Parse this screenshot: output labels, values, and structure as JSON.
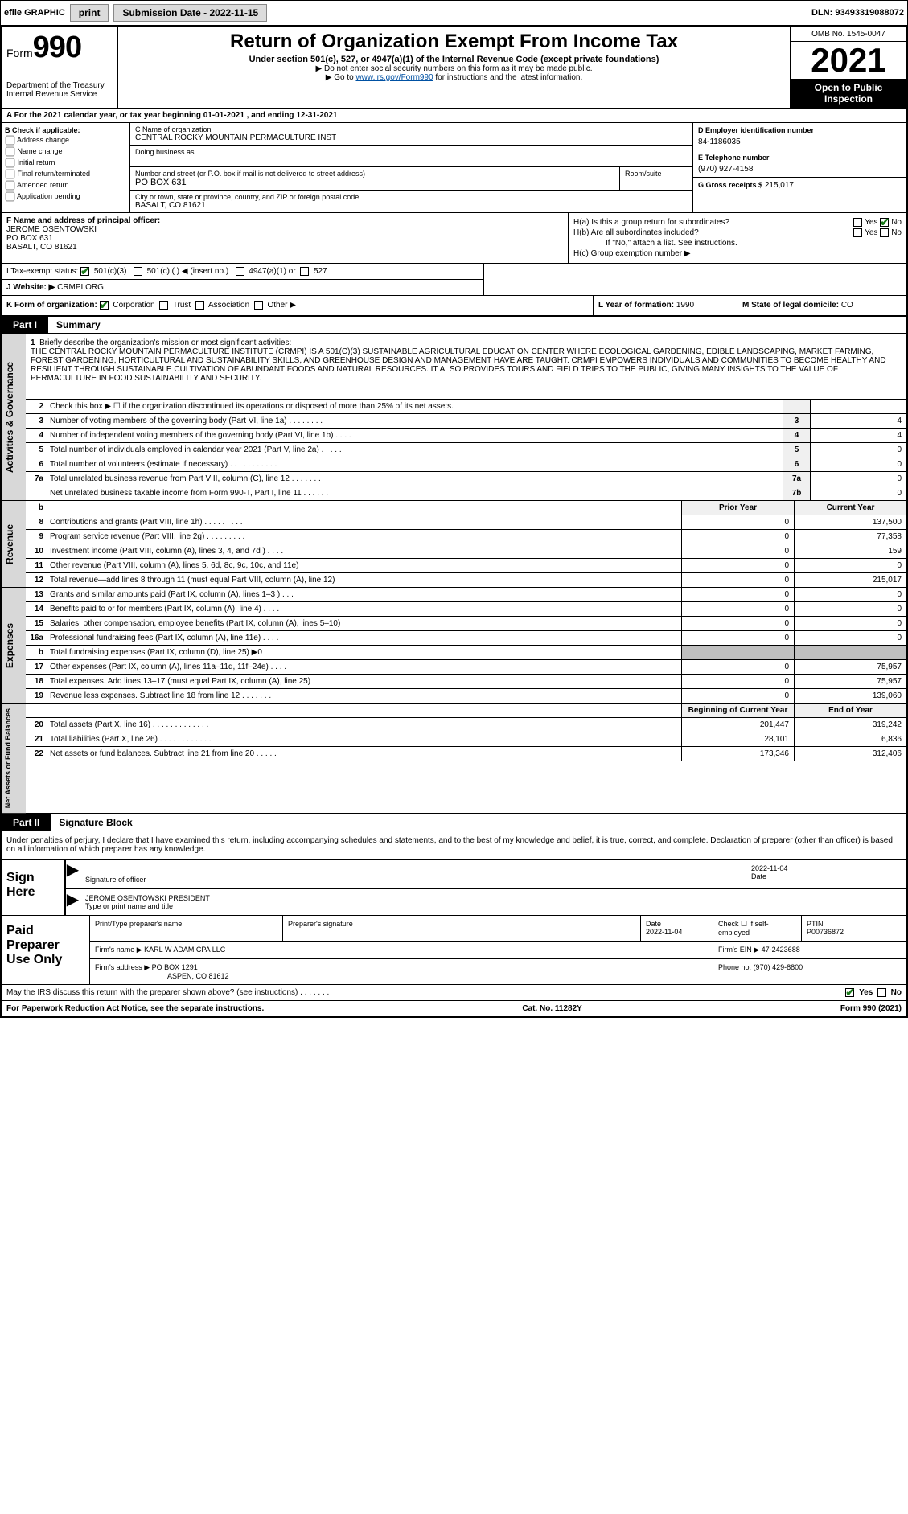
{
  "topbar": {
    "efile_label": "efile GRAPHIC",
    "print_btn": "print",
    "submission_label": "Submission Date - 2022-11-15",
    "dln": "DLN: 93493319088072"
  },
  "header": {
    "form_word": "Form",
    "form_num": "990",
    "dept": "Department of the Treasury",
    "irs": "Internal Revenue Service",
    "title": "Return of Organization Exempt From Income Tax",
    "sub": "Under section 501(c), 527, or 4947(a)(1) of the Internal Revenue Code (except private foundations)",
    "note1": "▶ Do not enter social security numbers on this form as it may be made public.",
    "note2_pre": "▶ Go to ",
    "note2_link": "www.irs.gov/Form990",
    "note2_post": " for instructions and the latest information.",
    "omb": "OMB No. 1545-0047",
    "year": "2021",
    "open": "Open to Public Inspection"
  },
  "row_a": "A For the 2021 calendar year, or tax year beginning 01-01-2021   , and ending 12-31-2021",
  "b": {
    "heading": "B Check if applicable:",
    "opts": [
      "Address change",
      "Name change",
      "Initial return",
      "Final return/terminated",
      "Amended return",
      "Application pending"
    ]
  },
  "c": {
    "name_label": "C Name of organization",
    "name": "CENTRAL ROCKY MOUNTAIN PERMACULTURE INST",
    "dba_label": "Doing business as",
    "addr_label": "Number and street (or P.O. box if mail is not delivered to street address)",
    "addr": "PO BOX 631",
    "room_label": "Room/suite",
    "city_label": "City or town, state or province, country, and ZIP or foreign postal code",
    "city": "BASALT, CO  81621"
  },
  "d": {
    "ein_label": "D Employer identification number",
    "ein": "84-1186035",
    "tel_label": "E Telephone number",
    "tel": "(970) 927-4158",
    "gross_label": "G Gross receipts $",
    "gross": "215,017"
  },
  "f": {
    "label": "F  Name and address of principal officer:",
    "name": "JEROME OSENTOWSKI",
    "addr1": "PO BOX 631",
    "addr2": "BASALT, CO  81621"
  },
  "h": {
    "a_label": "H(a)  Is this a group return for subordinates?",
    "b_label": "H(b)  Are all subordinates included?",
    "b_note": "If \"No,\" attach a list. See instructions.",
    "c_label": "H(c)  Group exemption number ▶",
    "yes": "Yes",
    "no": "No"
  },
  "i": {
    "label": "I   Tax-exempt status:",
    "o1": "501(c)(3)",
    "o2": "501(c) (   ) ◀ (insert no.)",
    "o3": "4947(a)(1) or",
    "o4": "527"
  },
  "j": {
    "label": "J   Website: ▶",
    "val": "CRMPI.ORG"
  },
  "k": {
    "label": "K Form of organization:",
    "corp": "Corporation",
    "trust": "Trust",
    "assoc": "Association",
    "other": "Other ▶"
  },
  "l": {
    "label": "L Year of formation:",
    "val": "1990"
  },
  "m": {
    "label": "M State of legal domicile:",
    "val": "CO"
  },
  "part1": {
    "tag": "Part I",
    "title": "Summary"
  },
  "mission": {
    "num": "1",
    "prompt": "Briefly describe the organization's mission or most significant activities:",
    "text": "THE CENTRAL ROCKY MOUNTAIN PERMACULTURE INSTITUTE (CRMPI) IS A 501(C)(3) SUSTAINABLE AGRICULTURAL EDUCATION CENTER WHERE ECOLOGICAL GARDENING, EDIBLE LANDSCAPING, MARKET FARMING, FOREST GARDENING, HORTICULTURAL AND SUSTAINABILITY SKILLS, AND GREENHOUSE DESIGN AND MANAGEMENT HAVE ARE TAUGHT. CRMPI EMPOWERS INDIVIDUALS AND COMMUNITIES TO BECOME HEALTHY AND RESILIENT THROUGH SUSTAINABLE CULTIVATION OF ABUNDANT FOODS AND NATURAL RESOURCES. IT ALSO PROVIDES TOURS AND FIELD TRIPS TO THE PUBLIC, GIVING MANY INSIGHTS TO THE VALUE OF PERMACULTURE IN FOOD SUSTAINABILITY AND SECURITY."
  },
  "gov_rows": [
    {
      "n": "2",
      "d": "Check this box ▶ ☐ if the organization discontinued its operations or disposed of more than 25% of its net assets.",
      "box": "",
      "v": ""
    },
    {
      "n": "3",
      "d": "Number of voting members of the governing body (Part VI, line 1a)  .   .   .   .   .   .   .   .",
      "box": "3",
      "v": "4"
    },
    {
      "n": "4",
      "d": "Number of independent voting members of the governing body (Part VI, line 1b)  .   .   .   .",
      "box": "4",
      "v": "4"
    },
    {
      "n": "5",
      "d": "Total number of individuals employed in calendar year 2021 (Part V, line 2a)  .   .   .   .   .",
      "box": "5",
      "v": "0"
    },
    {
      "n": "6",
      "d": "Total number of volunteers (estimate if necessary)  .   .   .   .   .   .   .   .   .   .   .",
      "box": "6",
      "v": "0"
    },
    {
      "n": "7a",
      "d": "Total unrelated business revenue from Part VIII, column (C), line 12  .   .   .   .   .   .   .",
      "box": "7a",
      "v": "0"
    },
    {
      "n": "",
      "d": "Net unrelated business taxable income from Form 990-T, Part I, line 11  .   .   .   .   .   .",
      "box": "7b",
      "v": "0"
    }
  ],
  "rev_hdr": {
    "b": "b",
    "prior": "Prior Year",
    "current": "Current Year"
  },
  "rev_rows": [
    {
      "n": "8",
      "d": "Contributions and grants (Part VIII, line 1h)  .   .   .   .   .   .   .   .   .",
      "p": "0",
      "c": "137,500"
    },
    {
      "n": "9",
      "d": "Program service revenue (Part VIII, line 2g)  .   .   .   .   .   .   .   .   .",
      "p": "0",
      "c": "77,358"
    },
    {
      "n": "10",
      "d": "Investment income (Part VIII, column (A), lines 3, 4, and 7d )  .   .   .   .",
      "p": "0",
      "c": "159"
    },
    {
      "n": "11",
      "d": "Other revenue (Part VIII, column (A), lines 5, 6d, 8c, 9c, 10c, and 11e)",
      "p": "0",
      "c": "0"
    },
    {
      "n": "12",
      "d": "Total revenue—add lines 8 through 11 (must equal Part VIII, column (A), line 12)",
      "p": "0",
      "c": "215,017"
    }
  ],
  "exp_rows": [
    {
      "n": "13",
      "d": "Grants and similar amounts paid (Part IX, column (A), lines 1–3 )  .   .   .",
      "p": "0",
      "c": "0"
    },
    {
      "n": "14",
      "d": "Benefits paid to or for members (Part IX, column (A), line 4)  .   .   .   .",
      "p": "0",
      "c": "0"
    },
    {
      "n": "15",
      "d": "Salaries, other compensation, employee benefits (Part IX, column (A), lines 5–10)",
      "p": "0",
      "c": "0"
    },
    {
      "n": "16a",
      "d": "Professional fundraising fees (Part IX, column (A), line 11e)  .   .   .   .",
      "p": "0",
      "c": "0"
    },
    {
      "n": "b",
      "d": "Total fundraising expenses (Part IX, column (D), line 25) ▶0",
      "p": "",
      "c": "",
      "shaded": true
    },
    {
      "n": "17",
      "d": "Other expenses (Part IX, column (A), lines 11a–11d, 11f–24e)  .   .   .   .",
      "p": "0",
      "c": "75,957"
    },
    {
      "n": "18",
      "d": "Total expenses. Add lines 13–17 (must equal Part IX, column (A), line 25)",
      "p": "0",
      "c": "75,957"
    },
    {
      "n": "19",
      "d": "Revenue less expenses. Subtract line 18 from line 12  .   .   .   .   .   .   .",
      "p": "0",
      "c": "139,060"
    }
  ],
  "na_hdr": {
    "begin": "Beginning of Current Year",
    "end": "End of Year"
  },
  "na_rows": [
    {
      "n": "20",
      "d": "Total assets (Part X, line 16)  .   .   .   .   .   .   .   .   .   .   .   .   .",
      "p": "201,447",
      "c": "319,242"
    },
    {
      "n": "21",
      "d": "Total liabilities (Part X, line 26)  .   .   .   .   .   .   .   .   .   .   .   .",
      "p": "28,101",
      "c": "6,836"
    },
    {
      "n": "22",
      "d": "Net assets or fund balances. Subtract line 21 from line 20  .   .   .   .   .",
      "p": "173,346",
      "c": "312,406"
    }
  ],
  "side_labels": {
    "gov": "Activities & Governance",
    "rev": "Revenue",
    "exp": "Expenses",
    "na": "Net Assets or Fund Balances"
  },
  "part2": {
    "tag": "Part II",
    "title": "Signature Block"
  },
  "sig_intro": "Under penalties of perjury, I declare that I have examined this return, including accompanying schedules and statements, and to the best of my knowledge and belief, it is true, correct, and complete. Declaration of preparer (other than officer) is based on all information of which preparer has any knowledge.",
  "sign": {
    "heading": "Sign Here",
    "sig_label": "Signature of officer",
    "date_label": "Date",
    "date": "2022-11-04",
    "name": "JEROME OSENTOWSKI PRESIDENT",
    "name_label": "Type or print name and title"
  },
  "prep": {
    "heading": "Paid Preparer Use Only",
    "h1": "Print/Type preparer's name",
    "h2": "Preparer's signature",
    "h3": "Date",
    "h3v": "2022-11-04",
    "h4": "Check ☐ if self-employed",
    "h5": "PTIN",
    "h5v": "P00736872",
    "firm_label": "Firm's name     ▶",
    "firm": "KARL W ADAM CPA LLC",
    "ein_label": "Firm's EIN ▶",
    "ein": "47-2423688",
    "addr_label": "Firm's address ▶",
    "addr1": "PO BOX 1291",
    "addr2": "ASPEN, CO  81612",
    "phone_label": "Phone no.",
    "phone": "(970) 429-8800"
  },
  "footer": {
    "discuss": "May the IRS discuss this return with the preparer shown above? (see instructions)   .   .   .   .   .   .   .",
    "yes": "Yes",
    "no": "No",
    "paperwork": "For Paperwork Reduction Act Notice, see the separate instructions.",
    "cat": "Cat. No. 11282Y",
    "form": "Form 990 (2021)"
  }
}
